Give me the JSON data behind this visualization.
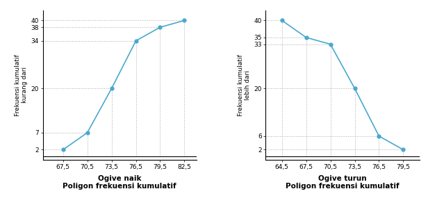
{
  "left": {
    "x": [
      67.5,
      70.5,
      73.5,
      76.5,
      79.5,
      82.5
    ],
    "y": [
      2,
      7,
      20,
      34,
      38,
      40
    ],
    "yticks": [
      2,
      7,
      20,
      34,
      38,
      40
    ],
    "xticks": [
      67.5,
      70.5,
      73.5,
      76.5,
      79.5,
      82.5
    ],
    "xlim": [
      65.0,
      84.0
    ],
    "ylim": [
      -1,
      43
    ],
    "ylabel1": "Frekuensi kumulatif",
    "ylabel2": "kurang dari",
    "title1": "Ogive naik",
    "title2": "Poligon frekuensi kumulatif",
    "color": "#4aa8cc",
    "dotted_x": [
      67.5,
      70.5,
      73.5,
      76.5,
      79.5,
      82.5
    ],
    "dotted_y": [
      2,
      7,
      20,
      34,
      38,
      40
    ]
  },
  "right": {
    "x": [
      64.5,
      67.5,
      70.5,
      73.5,
      76.5,
      79.5
    ],
    "y": [
      40,
      35,
      33,
      20,
      6,
      2
    ],
    "yticks": [
      2,
      6,
      20,
      33,
      35,
      40
    ],
    "xticks": [
      64.5,
      67.5,
      70.5,
      73.5,
      76.5,
      79.5
    ],
    "xlim": [
      62.5,
      81.5
    ],
    "ylim": [
      -1,
      43
    ],
    "ylabel1": "Frekuensi kumulatif",
    "ylabel2": "lebih dari",
    "title1": "Ogive turun",
    "title2": "Poligon frekuensi kumulatif",
    "color": "#4aa8cc",
    "dotted_x": [
      64.5,
      67.5,
      70.5,
      73.5,
      76.5,
      79.5
    ],
    "dotted_y": [
      40,
      35,
      33,
      20,
      6,
      2
    ]
  },
  "bg_color": "#ffffff",
  "grid_color": "#aaaaaa",
  "title_fontsize": 7.5,
  "label_fontsize": 6.5,
  "tick_fontsize": 6.5
}
